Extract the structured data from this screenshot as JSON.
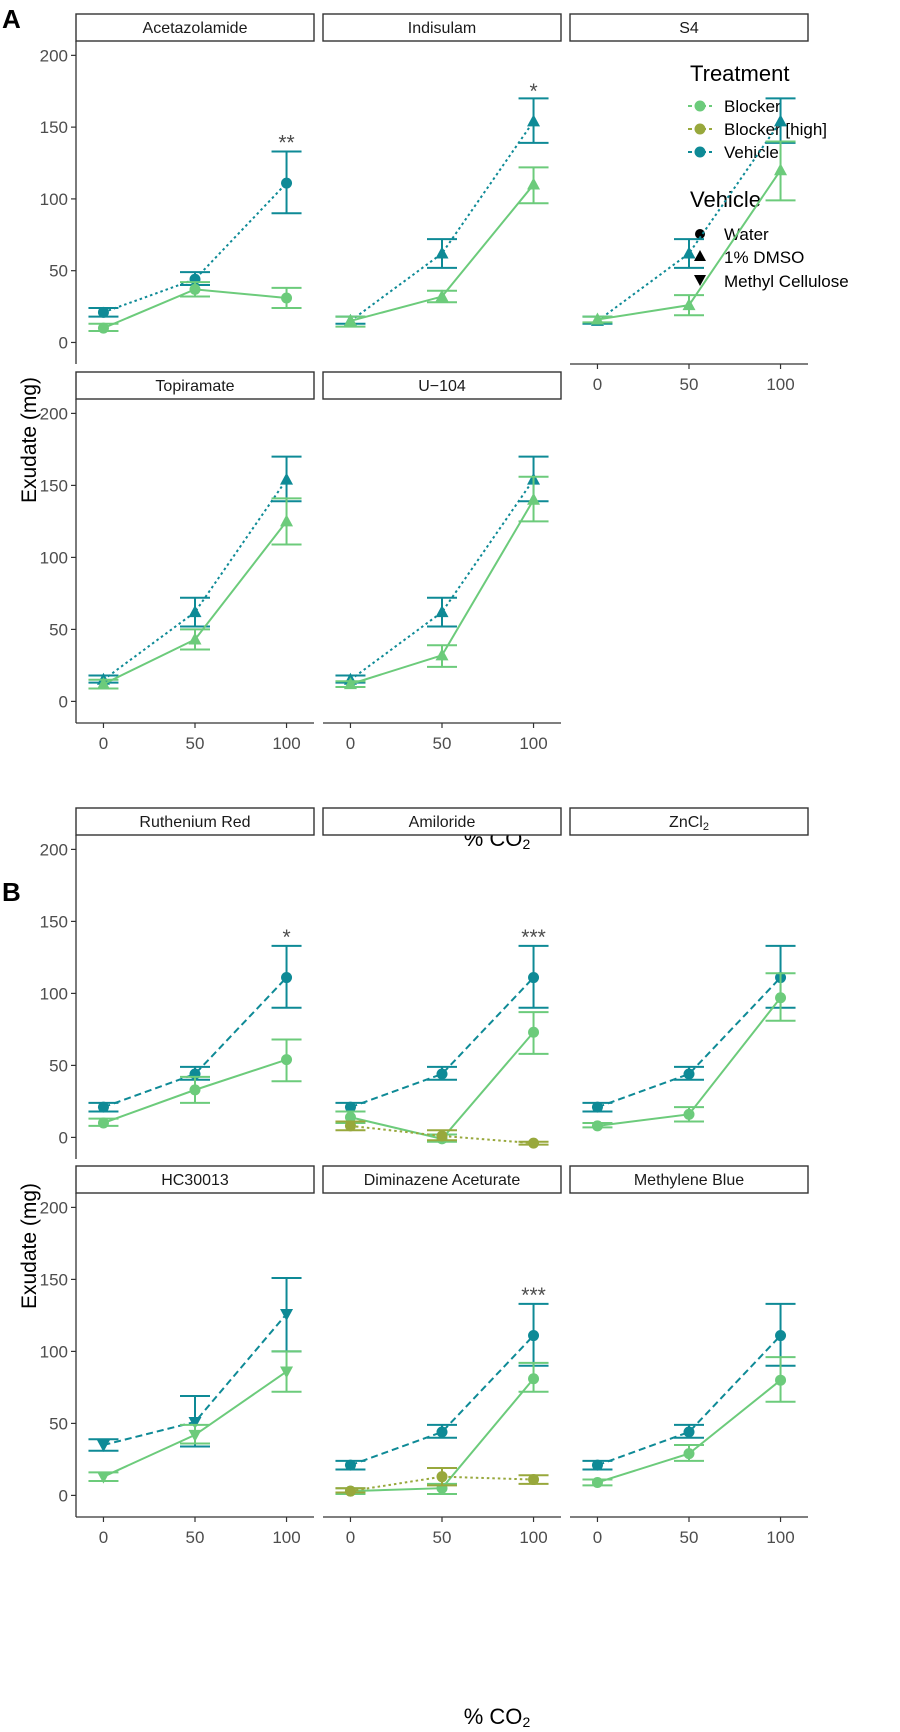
{
  "colors": {
    "blocker": "#6CCB7B",
    "blocker_high": "#98A83C",
    "vehicle": "#0E8A96"
  },
  "panel_labels": [
    "A",
    "B"
  ],
  "axis": {
    "y_label": "Exudate (mg)",
    "x_label_prefix": "% CO",
    "x_label_sub": "2"
  },
  "legend": {
    "treatment_title": "Treatment",
    "treatments": [
      "Blocker",
      "Blocker [high]",
      "Vehicle"
    ],
    "vehicle_title": "Vehicle",
    "vehicles": [
      "Water",
      "1% DMSO",
      "Methyl Cellulose"
    ]
  },
  "chart_data": [
    {
      "type": "line",
      "figure_part": "A",
      "x": [
        0,
        50,
        100
      ],
      "x_ticks": [
        "0",
        "50",
        "100"
      ],
      "y_ticks": [
        "0",
        "50",
        "100",
        "150",
        "200"
      ],
      "ylim": [
        -15,
        210
      ],
      "xlabel": "% CO2",
      "ylabel": "Exudate (mg)",
      "rows": 2,
      "cols": 3,
      "facets": [
        {
          "title": "Acetazolamide",
          "title_main": "Acetazolamide",
          "title_sub": "",
          "show_x_axis": false,
          "significance": {
            "x": 100,
            "y": 140,
            "label": "**"
          },
          "series": [
            {
              "name": "Vehicle",
              "line": "dotted",
              "shape": "circle",
              "values": [
                21,
                44,
                111
              ],
              "err_low": [
                18,
                40,
                90
              ],
              "err_high": [
                24,
                49,
                133
              ]
            },
            {
              "name": "Blocker",
              "line": "solid",
              "shape": "circle",
              "values": [
                10,
                37,
                31
              ],
              "err_low": [
                8,
                32,
                24
              ],
              "err_high": [
                13,
                42,
                38
              ]
            }
          ]
        },
        {
          "title": "Indisulam",
          "title_main": "Indisulam",
          "title_sub": "",
          "show_x_axis": false,
          "significance": {
            "x": 100,
            "y": 176,
            "label": "*"
          },
          "series": [
            {
              "name": "Vehicle",
              "line": "dotted",
              "shape": "triangle-up",
              "values": [
                15,
                62,
                154
              ],
              "err_low": [
                13,
                52,
                139
              ],
              "err_high": [
                18,
                72,
                170
              ]
            },
            {
              "name": "Blocker",
              "line": "solid",
              "shape": "triangle-up",
              "values": [
                15,
                32,
                110
              ],
              "err_low": [
                11,
                28,
                97
              ],
              "err_high": [
                18,
                36,
                122
              ]
            }
          ]
        },
        {
          "title": "S4",
          "title_main": "S4",
          "title_sub": "",
          "show_x_axis": true,
          "significance": null,
          "series": [
            {
              "name": "Vehicle",
              "line": "dotted",
              "shape": "triangle-up",
              "values": [
                15,
                62,
                154
              ],
              "err_low": [
                13,
                52,
                139
              ],
              "err_high": [
                18,
                72,
                170
              ]
            },
            {
              "name": "Blocker",
              "line": "solid",
              "shape": "triangle-up",
              "values": [
                16,
                26,
                120
              ],
              "err_low": [
                14,
                19,
                99
              ],
              "err_high": [
                18,
                33,
                140
              ]
            }
          ]
        },
        {
          "title": "Topiramate",
          "title_main": "Topiramate",
          "title_sub": "",
          "show_x_axis": true,
          "significance": null,
          "series": [
            {
              "name": "Vehicle",
              "line": "dotted",
              "shape": "triangle-up",
              "values": [
                15,
                62,
                154
              ],
              "err_low": [
                13,
                52,
                139
              ],
              "err_high": [
                18,
                72,
                170
              ]
            },
            {
              "name": "Blocker",
              "line": "solid",
              "shape": "triangle-up",
              "values": [
                12,
                43,
                125
              ],
              "err_low": [
                9,
                36,
                109
              ],
              "err_high": [
                15,
                50,
                141
              ]
            }
          ]
        },
        {
          "title": "U−104",
          "title_main": "U−104",
          "title_sub": "",
          "show_x_axis": true,
          "significance": null,
          "series": [
            {
              "name": "Vehicle",
              "line": "dotted",
              "shape": "triangle-up",
              "values": [
                15,
                62,
                154
              ],
              "err_low": [
                13,
                52,
                139
              ],
              "err_high": [
                18,
                72,
                170
              ]
            },
            {
              "name": "Blocker",
              "line": "solid",
              "shape": "triangle-up",
              "values": [
                12,
                32,
                140
              ],
              "err_low": [
                10,
                24,
                125
              ],
              "err_high": [
                14,
                39,
                156
              ]
            }
          ]
        }
      ]
    },
    {
      "type": "line",
      "figure_part": "B",
      "x": [
        0,
        50,
        100
      ],
      "x_ticks": [
        "0",
        "50",
        "100"
      ],
      "y_ticks": [
        "0",
        "50",
        "100",
        "150",
        "200"
      ],
      "ylim": [
        -15,
        210
      ],
      "xlabel": "% CO2",
      "ylabel": "Exudate (mg)",
      "rows": 2,
      "cols": 3,
      "facets": [
        {
          "title": "Ruthenium Red",
          "title_main": "Ruthenium Red",
          "title_sub": "",
          "show_x_axis": false,
          "significance": {
            "x": 100,
            "y": 140,
            "label": "*"
          },
          "series": [
            {
              "name": "Vehicle",
              "line": "dashed",
              "shape": "circle",
              "values": [
                21,
                44,
                111
              ],
              "err_low": [
                18,
                40,
                90
              ],
              "err_high": [
                24,
                49,
                133
              ]
            },
            {
              "name": "Blocker",
              "line": "solid",
              "shape": "circle",
              "values": [
                10,
                33,
                54
              ],
              "err_low": [
                8,
                24,
                39
              ],
              "err_high": [
                13,
                42,
                68
              ]
            }
          ]
        },
        {
          "title": "Amiloride",
          "title_main": "Amiloride",
          "title_sub": "",
          "show_x_axis": false,
          "significance": {
            "x": 100,
            "y": 140,
            "label": "***"
          },
          "series": [
            {
              "name": "Vehicle",
              "line": "dashed",
              "shape": "circle",
              "values": [
                21,
                44,
                111
              ],
              "err_low": [
                18,
                40,
                90
              ],
              "err_high": [
                24,
                49,
                133
              ]
            },
            {
              "name": "Blocker",
              "line": "solid",
              "shape": "circle",
              "values": [
                14,
                -1,
                73
              ],
              "err_low": [
                10,
                -3,
                58
              ],
              "err_high": [
                18,
                2,
                87
              ]
            },
            {
              "name": "Blocker [high]",
              "line": "dotted",
              "shape": "circle",
              "values": [
                8,
                1,
                -4
              ],
              "err_low": [
                5,
                -2,
                -5
              ],
              "err_high": [
                11,
                5,
                -3
              ]
            }
          ]
        },
        {
          "title": "ZnCl2",
          "title_main": "ZnCl",
          "title_sub": "2",
          "show_x_axis": false,
          "significance": null,
          "series": [
            {
              "name": "Vehicle",
              "line": "dashed",
              "shape": "circle",
              "values": [
                21,
                44,
                111
              ],
              "err_low": [
                18,
                40,
                90
              ],
              "err_high": [
                24,
                49,
                133
              ]
            },
            {
              "name": "Blocker",
              "line": "solid",
              "shape": "circle",
              "values": [
                8,
                16,
                97
              ],
              "err_low": [
                7,
                11,
                81
              ],
              "err_high": [
                10,
                21,
                114
              ]
            }
          ]
        },
        {
          "title": "HC30013",
          "title_main": "HC30013",
          "title_sub": "",
          "show_x_axis": true,
          "significance": null,
          "series": [
            {
              "name": "Vehicle",
              "line": "dashed",
              "shape": "triangle-down",
              "values": [
                35,
                51,
                126
              ],
              "err_low": [
                31,
                34,
                100
              ],
              "err_high": [
                39,
                69,
                151
              ]
            },
            {
              "name": "Blocker",
              "line": "solid",
              "shape": "triangle-down",
              "values": [
                13,
                42,
                86
              ],
              "err_low": [
                10,
                36,
                72
              ],
              "err_high": [
                16,
                49,
                100
              ]
            }
          ]
        },
        {
          "title": "Diminazene Aceturate",
          "title_main": "Diminazene Aceturate",
          "title_sub": "",
          "show_x_axis": true,
          "significance": {
            "x": 100,
            "y": 140,
            "label": "***"
          },
          "series": [
            {
              "name": "Vehicle",
              "line": "dashed",
              "shape": "circle",
              "values": [
                21,
                44,
                111
              ],
              "err_low": [
                18,
                40,
                90
              ],
              "err_high": [
                24,
                49,
                133
              ]
            },
            {
              "name": "Blocker",
              "line": "solid",
              "shape": "circle",
              "values": [
                3,
                5,
                81
              ],
              "err_low": [
                1,
                1,
                72
              ],
              "err_high": [
                5,
                8,
                92
              ]
            },
            {
              "name": "Blocker [high]",
              "line": "dotted",
              "shape": "circle",
              "values": [
                3,
                13,
                11
              ],
              "err_low": [
                2,
                7,
                8
              ],
              "err_high": [
                5,
                19,
                14
              ]
            }
          ]
        },
        {
          "title": "Methylene Blue",
          "title_main": "Methylene Blue",
          "title_sub": "",
          "show_x_axis": true,
          "significance": null,
          "series": [
            {
              "name": "Vehicle",
              "line": "dashed",
              "shape": "circle",
              "values": [
                21,
                44,
                111
              ],
              "err_low": [
                18,
                40,
                90
              ],
              "err_high": [
                24,
                49,
                133
              ]
            },
            {
              "name": "Blocker",
              "line": "solid",
              "shape": "circle",
              "values": [
                9,
                29,
                80
              ],
              "err_low": [
                7,
                24,
                65
              ],
              "err_high": [
                11,
                35,
                96
              ]
            }
          ]
        }
      ]
    }
  ]
}
